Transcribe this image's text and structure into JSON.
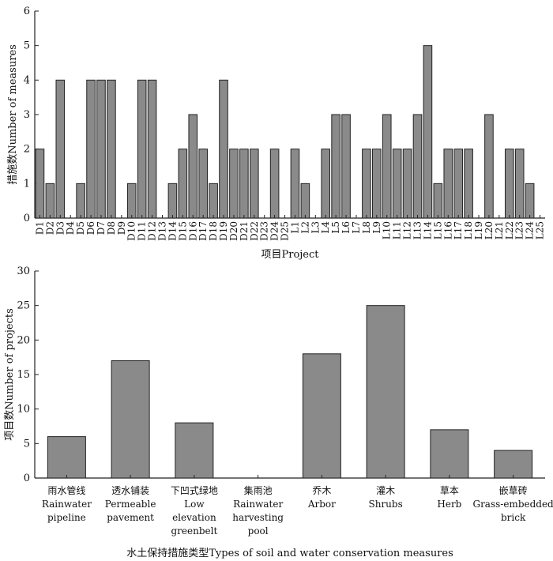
{
  "chart_data": [
    {
      "type": "bar",
      "title": "",
      "xlabel": "项目Project",
      "ylabel": "措施数Number of measures",
      "ylim": [
        0,
        6
      ],
      "yticks": [
        0,
        1,
        2,
        3,
        4,
        5,
        6
      ],
      "categories": [
        "D1",
        "D2",
        "D3",
        "D4",
        "D5",
        "D6",
        "D7",
        "D8",
        "D9",
        "D10",
        "D11",
        "D12",
        "D13",
        "D14",
        "D15",
        "D16",
        "D17",
        "D18",
        "D19",
        "D20",
        "D21",
        "D22",
        "D23",
        "D24",
        "D25",
        "L1",
        "L2",
        "L3",
        "L4",
        "L5",
        "L6",
        "L7",
        "L8",
        "L9",
        "L10",
        "L11",
        "L12",
        "L13",
        "L14",
        "L15",
        "L16",
        "L17",
        "L18",
        "L19",
        "L20",
        "L21",
        "L22",
        "L23",
        "L24",
        "L25"
      ],
      "values": [
        2,
        1,
        4,
        0,
        1,
        4,
        4,
        4,
        0,
        1,
        4,
        4,
        0,
        1,
        2,
        3,
        2,
        1,
        4,
        2,
        2,
        2,
        0,
        2,
        0,
        2,
        1,
        0,
        2,
        3,
        3,
        0,
        2,
        2,
        3,
        2,
        2,
        3,
        5,
        1,
        2,
        2,
        2,
        0,
        3,
        0,
        2,
        2,
        1,
        0
      ]
    },
    {
      "type": "bar",
      "title": "",
      "xlabel": "水土保持措施类型Types of soil and water conservation measures",
      "ylabel": "项目数Number of projects",
      "ylim": [
        0,
        30
      ],
      "yticks": [
        0,
        5,
        10,
        15,
        20,
        25,
        30
      ],
      "categories": [
        {
          "zh": "雨水管线",
          "en": [
            "Rainwater",
            "pipeline"
          ]
        },
        {
          "zh": "透水铺装",
          "en": [
            "Permeable",
            "pavement"
          ]
        },
        {
          "zh": "下凹式绿地",
          "en": [
            "Low",
            "elevation",
            "greenbelt"
          ]
        },
        {
          "zh": "集雨池",
          "en": [
            "Rainwater",
            "harvesting",
            "pool"
          ]
        },
        {
          "zh": "乔木",
          "en": [
            "Arbor"
          ]
        },
        {
          "zh": "灌木",
          "en": [
            "Shrubs"
          ]
        },
        {
          "zh": "草本",
          "en": [
            "Herb"
          ]
        },
        {
          "zh": "嵌草砖",
          "en": [
            "Grass-embedded",
            "brick"
          ]
        }
      ],
      "values": [
        6,
        17,
        8,
        0,
        18,
        25,
        7,
        4
      ]
    }
  ]
}
